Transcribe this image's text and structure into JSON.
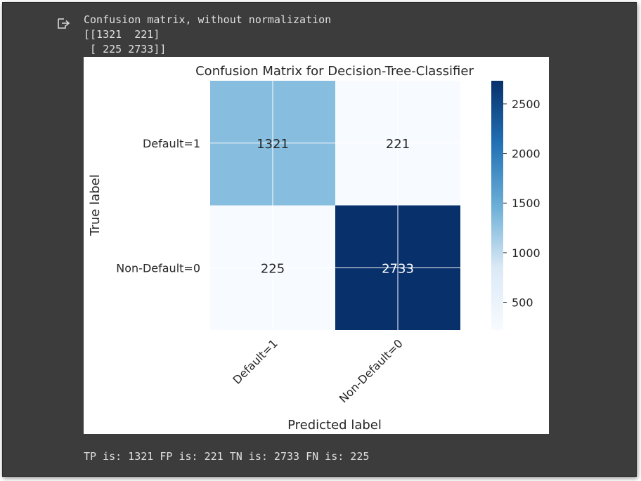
{
  "output": {
    "header_line": "Confusion matrix, without normalization",
    "matrix_line_1": "[[1321  221]",
    "matrix_line_2": " [ 225 2733]]",
    "summary": "TP is: 1321 FP is: 221 TN is: 2733 FN is: 225"
  },
  "colors": {
    "cell_background": "#3c3c3c",
    "output_text": "#e0e0e0",
    "cmap_low": "#f7fbff",
    "cmap_mid": "#6baed6",
    "cmap_high": "#08306b"
  },
  "chart_data": {
    "type": "heatmap",
    "title": "Confusion Matrix for Decision-Tree-Classifier",
    "xlabel": "Predicted label",
    "ylabel": "True label",
    "x_categories": [
      "Default=1",
      "Non-Default=0"
    ],
    "y_categories": [
      "Default=1",
      "Non-Default=0"
    ],
    "values": [
      [
        1321,
        221
      ],
      [
        225,
        2733
      ]
    ],
    "value_range": [
      221,
      2733
    ],
    "colorbar_ticks": [
      "500",
      "1000",
      "1500",
      "2000",
      "2500"
    ],
    "colormap": "Blues",
    "grid": true
  }
}
